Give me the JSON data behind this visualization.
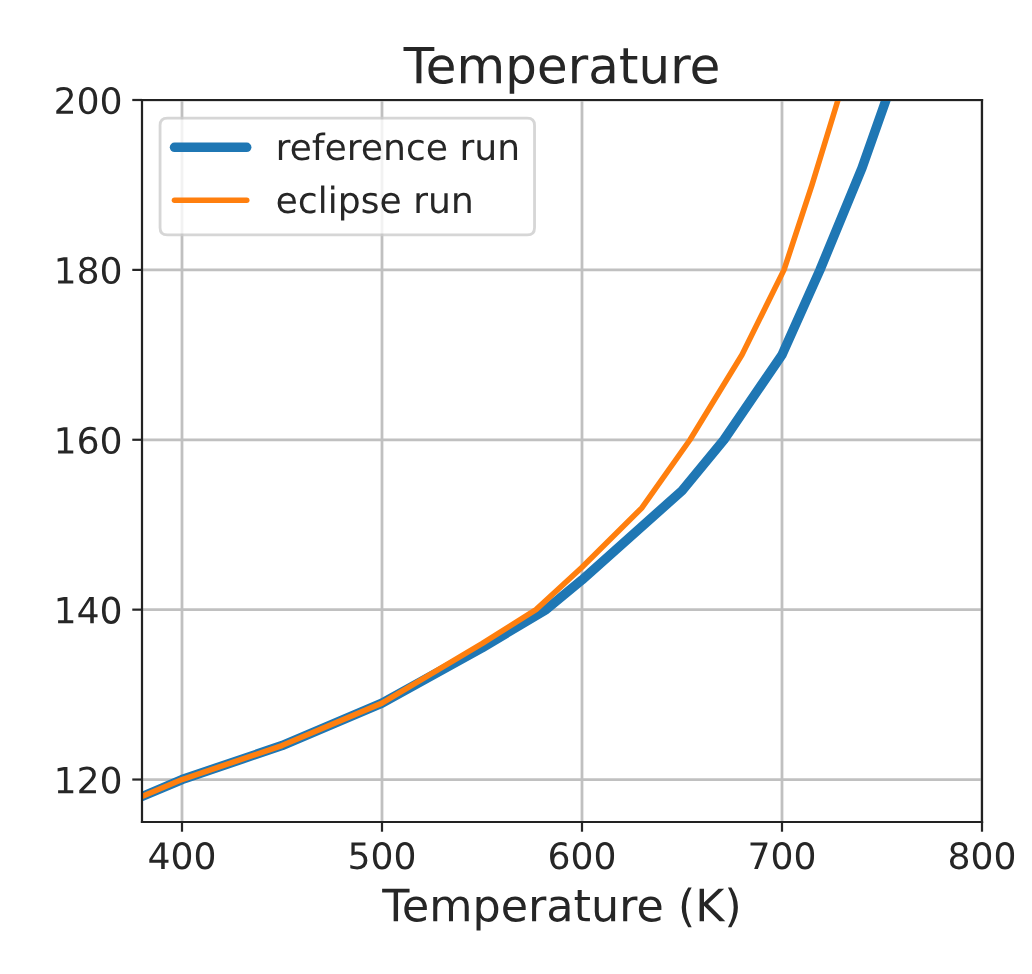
{
  "chart_data": {
    "type": "line",
    "title": "Temperature",
    "xlabel": "Temperature (K)",
    "series": [
      {
        "name": "reference run",
        "color": "#1f77b4",
        "x": [
          380,
          400,
          450,
          500,
          550,
          582,
          600,
          650,
          671,
          700,
          719,
          740,
          752
        ],
        "values": [
          118,
          120,
          124,
          129,
          135.5,
          140,
          143.5,
          154,
          160,
          170,
          180,
          192,
          200
        ]
      },
      {
        "name": "eclipse run",
        "color": "#ff7f0e",
        "x": [
          380,
          400,
          450,
          500,
          550,
          577,
          600,
          630,
          654,
          680,
          701,
          715,
          728
        ],
        "values": [
          118,
          120,
          124,
          129,
          136,
          140,
          145,
          152,
          160,
          170,
          180,
          190,
          200
        ]
      }
    ],
    "xlim": [
      380,
      800
    ],
    "ylim": [
      115,
      200
    ],
    "xticks": [
      400,
      500,
      600,
      700,
      800
    ],
    "yticks": [
      120,
      140,
      160,
      180,
      200
    ],
    "grid": true,
    "legend": "top left",
    "line_style": "solid",
    "marker": "none"
  }
}
